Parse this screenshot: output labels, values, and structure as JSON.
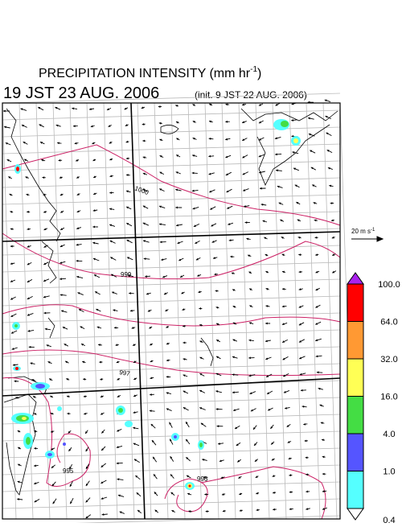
{
  "header": {
    "title": "PRECIPITATION INTENSITY (mm hr",
    "title_sup": "-1",
    "title_end": ")",
    "date": "19 JST 23 AUG. 2006",
    "init": "(init. 9 JST 22 AUG. 2006)"
  },
  "wind_legend": {
    "label": "20 m s",
    "sup": "-1"
  },
  "contour_labels": [
    "1000",
    "999",
    "997",
    "995",
    "996"
  ],
  "colorbar": {
    "levels": [
      {
        "value": 100,
        "label": "100.0"
      },
      {
        "value": 64,
        "label": "64.0"
      },
      {
        "value": 32,
        "label": "32.0"
      },
      {
        "value": 16,
        "label": "16.0"
      },
      {
        "value": 4,
        "label": "4.0"
      },
      {
        "value": 1,
        "label": "1.0"
      },
      {
        "value": 0.4,
        "label": "0.4"
      }
    ],
    "colors": [
      "#ff0000",
      "#ff9933",
      "#ffff55",
      "#44dd44",
      "#5555ff",
      "#55ffff"
    ],
    "over_color": "#aa22ee",
    "under_color": "#ffffff"
  }
}
